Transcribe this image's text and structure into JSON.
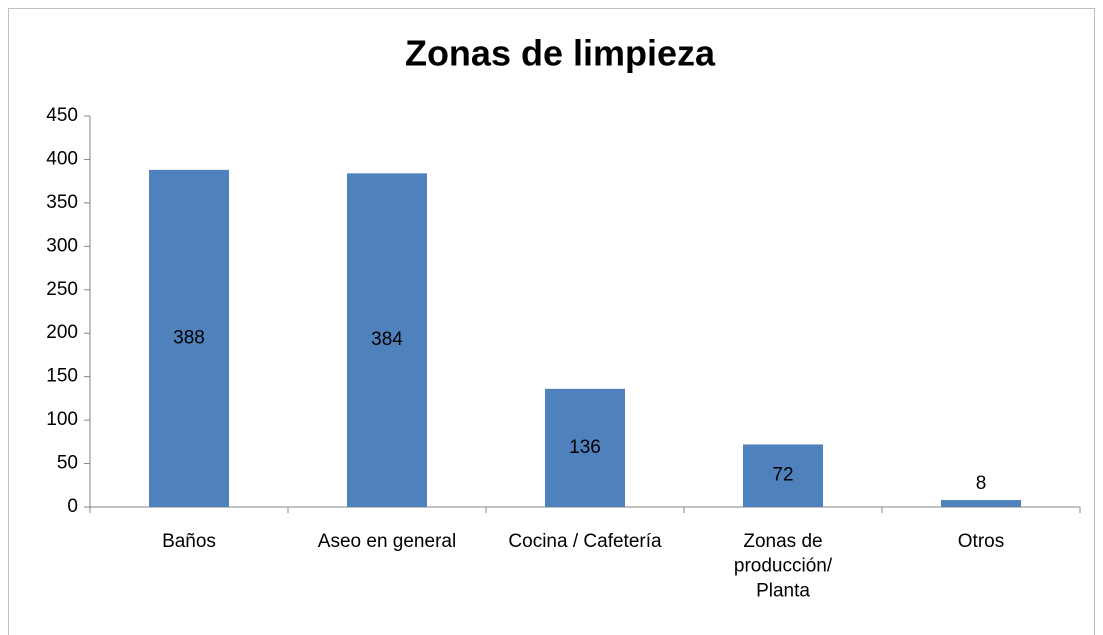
{
  "chart_data": {
    "type": "bar",
    "title": "Zonas de limpieza",
    "categories": [
      "Baños",
      "Aseo en general",
      "Cocina / Cafetería",
      "Zonas de\nproducción/\nPlanta",
      "Otros"
    ],
    "values": [
      388,
      384,
      136,
      72,
      8
    ],
    "color": "#4f81bd",
    "ylim": [
      0,
      450
    ],
    "yticks": [
      0,
      50,
      100,
      150,
      200,
      250,
      300,
      350,
      400,
      450
    ],
    "grid": false
  }
}
